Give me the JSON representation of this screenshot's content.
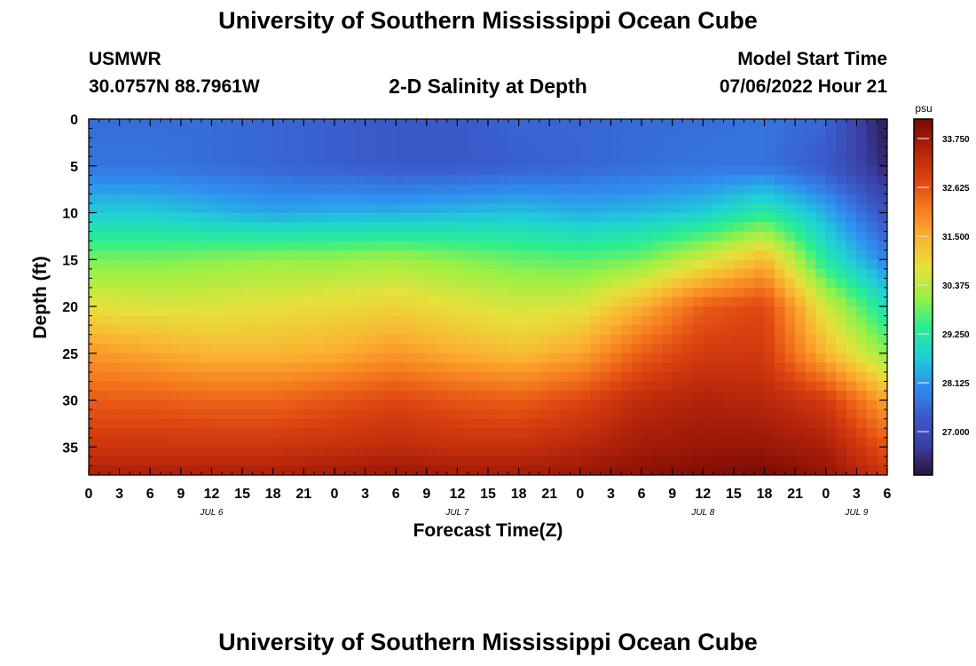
{
  "header": {
    "title": "University of Southern Mississippi Ocean Cube",
    "station": "USMWR",
    "coords": "30.0757N  88.7961W",
    "subtitle": "2-D Salinity at Depth",
    "model_label": "Model Start Time",
    "model_time": "07/06/2022 Hour 21"
  },
  "footer": {
    "title": "University of Southern Mississippi Ocean Cube"
  },
  "chart_data": {
    "type": "heatmap",
    "title": "2-D Salinity at Depth",
    "xlabel": "Forecast Time(Z)",
    "ylabel": "Depth (ft)",
    "x_ticks": [
      "0",
      "3",
      "6",
      "9",
      "12",
      "15",
      "18",
      "21",
      "0",
      "3",
      "6",
      "9",
      "12",
      "15",
      "18",
      "21",
      "0",
      "3",
      "6",
      "9",
      "12",
      "15",
      "18",
      "21",
      "0",
      "3",
      "6"
    ],
    "x_day_labels": [
      {
        "label": "JUL 6",
        "hour": 12
      },
      {
        "label": "JUL 7",
        "hour": 36
      },
      {
        "label": "JUL 8",
        "hour": 60
      },
      {
        "label": "JUL 9",
        "hour": 75
      }
    ],
    "xlim_hours": [
      0,
      78
    ],
    "y_ticks": [
      0,
      5,
      10,
      15,
      20,
      25,
      30,
      35
    ],
    "ylim": [
      38,
      0
    ],
    "colorbar": {
      "unit": "psu",
      "range": [
        26.0,
        34.2
      ],
      "ticks": [
        "33.750",
        "32.625",
        "31.500",
        "30.375",
        "29.250",
        "28.125",
        "27.000"
      ],
      "colormap": [
        "#2a1440",
        "#3a3fa2",
        "#3a5ccc",
        "#2f8ef0",
        "#1fd0d6",
        "#2bee90",
        "#9af046",
        "#e6e23a",
        "#fbb231",
        "#f57a1e",
        "#dc4210",
        "#b0220a",
        "#7a0a04"
      ]
    },
    "profile_depths_ft": [
      0,
      5,
      10,
      15,
      20,
      25,
      30,
      35,
      38
    ],
    "profiles": [
      {
        "hour": 0,
        "values": [
          27.6,
          27.7,
          28.7,
          29.9,
          30.8,
          31.8,
          32.5,
          33.1,
          33.6
        ]
      },
      {
        "hour": 6,
        "values": [
          27.6,
          27.7,
          28.7,
          29.9,
          30.7,
          31.6,
          32.5,
          33.1,
          33.6
        ]
      },
      {
        "hour": 12,
        "values": [
          27.6,
          27.6,
          28.5,
          30.0,
          30.7,
          31.4,
          32.4,
          33.1,
          33.6
        ]
      },
      {
        "hour": 18,
        "values": [
          27.5,
          27.5,
          28.3,
          30.1,
          30.8,
          31.4,
          32.4,
          33.1,
          33.6
        ]
      },
      {
        "hour": 24,
        "values": [
          27.4,
          27.4,
          28.4,
          30.1,
          30.9,
          31.5,
          32.6,
          33.2,
          33.7
        ]
      },
      {
        "hour": 30,
        "values": [
          27.3,
          27.3,
          28.4,
          30.2,
          31.0,
          31.8,
          32.8,
          33.3,
          33.8
        ]
      },
      {
        "hour": 36,
        "values": [
          27.3,
          27.3,
          28.5,
          30.0,
          30.8,
          31.5,
          32.6,
          33.2,
          33.7
        ]
      },
      {
        "hour": 42,
        "values": [
          27.5,
          27.4,
          28.6,
          29.8,
          30.6,
          31.3,
          32.5,
          33.2,
          33.7
        ]
      },
      {
        "hour": 48,
        "values": [
          27.5,
          27.5,
          28.4,
          29.7,
          30.7,
          31.6,
          32.8,
          33.4,
          33.8
        ]
      },
      {
        "hour": 54,
        "values": [
          27.6,
          27.6,
          28.5,
          29.9,
          31.5,
          32.5,
          33.3,
          33.7,
          34.0
        ]
      },
      {
        "hour": 60,
        "values": [
          27.6,
          27.7,
          28.7,
          30.6,
          32.5,
          33.0,
          33.5,
          33.8,
          34.1
        ]
      },
      {
        "hour": 66,
        "values": [
          27.7,
          27.7,
          29.3,
          31.4,
          32.8,
          33.0,
          33.4,
          33.8,
          34.2
        ]
      },
      {
        "hour": 72,
        "values": [
          27.5,
          27.3,
          28.4,
          29.2,
          30.6,
          31.4,
          33.0,
          33.6,
          33.9
        ]
      },
      {
        "hour": 78,
        "values": [
          26.1,
          26.3,
          27.1,
          27.9,
          29.0,
          30.0,
          31.6,
          32.6,
          33.1
        ]
      }
    ]
  }
}
